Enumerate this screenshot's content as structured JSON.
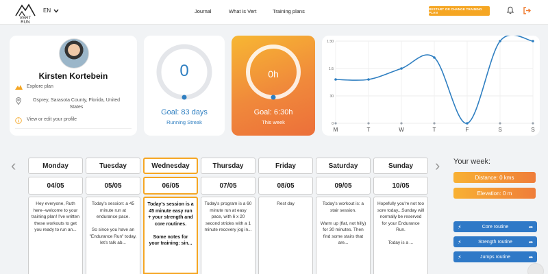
{
  "header": {
    "logo_text": "VERT RUN",
    "language": "EN",
    "nav": [
      "Journal",
      "What is Vert",
      "Training plans"
    ],
    "cta_label": "RESTART OR CHANGE TRAINING PLAN"
  },
  "profile": {
    "name": "Kirsten Kortebein",
    "explore_label": "Explore plan",
    "location": "Osprey, Sarasota County, Florida, United States",
    "edit_label": "View or edit your profile"
  },
  "streak": {
    "value": "0",
    "goal": "Goal: 83 days",
    "label": "Running Streak",
    "progress": 0
  },
  "this_week": {
    "value": "0h",
    "goal": "Goal: 6:30h",
    "label": "This week",
    "progress": 0
  },
  "chart_data": {
    "type": "line",
    "categories": [
      "M",
      "T",
      "W",
      "T",
      "F",
      "S",
      "S"
    ],
    "series": [
      {
        "values": [
          0.8,
          0.8,
          1.0,
          1.2,
          0.0,
          1.5,
          1.5
        ]
      }
    ],
    "y_ticks": [
      "1:30",
      "1:5",
      "30",
      "0"
    ],
    "ylim": [
      0,
      1.5
    ],
    "grid": true,
    "line_color": "#2f7fc1"
  },
  "schedule": {
    "days": [
      {
        "name": "Monday",
        "date": "04/05",
        "text": "Hey everyone, Ruth here--welcome to your training plan! I've written these workouts to get you ready to run an...",
        "active": false
      },
      {
        "name": "Tuesday",
        "date": "05/05",
        "text": "Today's session: a 45 minute run at endurance pace.\n\nSo since you have an \"Endurance Run\" today, let's talk ab...",
        "active": false
      },
      {
        "name": "Wednesday",
        "date": "06/05",
        "text": "Today's session is a 45 minute easy run + your strength and core routines.\n\nSome notes for your training: sin...",
        "active": true
      },
      {
        "name": "Thursday",
        "date": "07/05",
        "text": "Today's program is a 60 minute run at easy pace, with 6 x 20 second strides with a 1 minute recovery jog in...",
        "active": false
      },
      {
        "name": "Friday",
        "date": "08/05",
        "text": "Rest day",
        "active": false
      },
      {
        "name": "Saturday",
        "date": "09/05",
        "text": "Today's workout is: a stair session.\n\nWarm up (flat, not hilly) for 30 minutes. Then find some stairs that are...",
        "active": false
      },
      {
        "name": "Sunday",
        "date": "10/05",
        "text": "Hopefully you're not too sore today...Sunday will normally be reserved for your Endurance Run.\n\nToday is a ...",
        "active": false
      }
    ]
  },
  "your_week": {
    "title": "Your week:",
    "distance": "Distance: 0 kms",
    "elevation": "Elevation: 0 m",
    "routines": [
      "Core routine",
      "Strength routine",
      "Jumps routine"
    ]
  }
}
